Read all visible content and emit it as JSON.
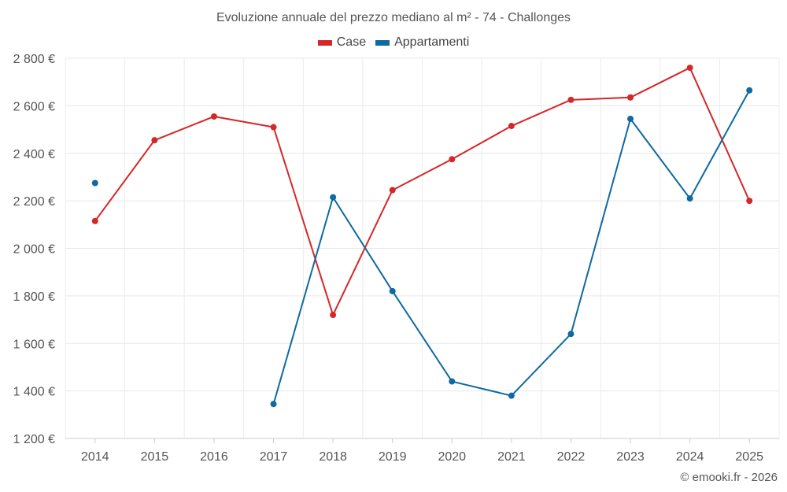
{
  "chart_data": {
    "type": "line",
    "title": "Evoluzione annuale del prezzo mediano al m² - 74 - Challonges",
    "xlabel": "",
    "ylabel": "",
    "categories": [
      "2014",
      "2015",
      "2016",
      "2017",
      "2018",
      "2019",
      "2020",
      "2021",
      "2022",
      "2023",
      "2024",
      "2025"
    ],
    "ylim": [
      1200,
      2800
    ],
    "yticks": [
      1200,
      1400,
      1600,
      1800,
      2000,
      2200,
      2400,
      2600,
      2800
    ],
    "ytick_labels": [
      "1 200 €",
      "1 400 €",
      "1 600 €",
      "1 800 €",
      "2 000 €",
      "2 200 €",
      "2 400 €",
      "2 600 €",
      "2 800 €"
    ],
    "grid": true,
    "legend_position": "top-center",
    "series": [
      {
        "name": "Case",
        "color": "#d62728",
        "values": [
          2115,
          2455,
          2555,
          2510,
          1720,
          2245,
          2375,
          2515,
          2625,
          2635,
          2760,
          2200
        ]
      },
      {
        "name": "Appartamenti",
        "color": "#0e6aa0",
        "values": [
          2275,
          null,
          null,
          1345,
          2215,
          1820,
          1440,
          1380,
          1640,
          2545,
          2210,
          2665
        ]
      }
    ]
  },
  "footer": {
    "credit": "© emooki.fr - 2026"
  }
}
